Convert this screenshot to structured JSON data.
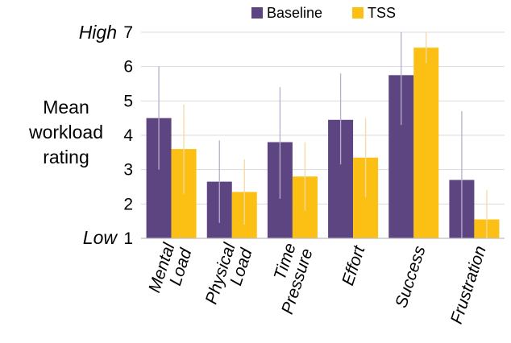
{
  "chart_data": {
    "type": "bar",
    "ylabel": [
      "Mean",
      "workload",
      "rating"
    ],
    "ylim": [
      1,
      7
    ],
    "yticks": [
      "1",
      "2",
      "3",
      "4",
      "5",
      "6",
      "7"
    ],
    "y_anchor_labels": {
      "high": "High",
      "low": "Low"
    },
    "categories": [
      [
        "Mental",
        "Load"
      ],
      [
        "Physical",
        "Load"
      ],
      [
        "Time",
        "Pressure"
      ],
      [
        "Effort"
      ],
      [
        "Success"
      ],
      [
        "Frustration"
      ]
    ],
    "legend_position": "top",
    "grid": true,
    "series": [
      {
        "name": "Baseline",
        "color": "#5c4580",
        "values": [
          4.5,
          2.65,
          3.8,
          4.45,
          5.75,
          2.7
        ],
        "error_low": [
          3.0,
          1.45,
          2.15,
          3.15,
          4.3,
          1.0
        ],
        "error_high": [
          6.0,
          3.85,
          5.4,
          5.8,
          7.0,
          4.7
        ]
      },
      {
        "name": "TSS",
        "color": "#fcc014",
        "values": [
          3.6,
          2.35,
          2.8,
          3.35,
          6.55,
          1.55
        ],
        "error_low": [
          2.3,
          1.4,
          1.8,
          2.2,
          6.1,
          0.7
        ],
        "error_high": [
          4.9,
          3.3,
          3.8,
          4.5,
          7.0,
          2.4
        ]
      }
    ]
  }
}
